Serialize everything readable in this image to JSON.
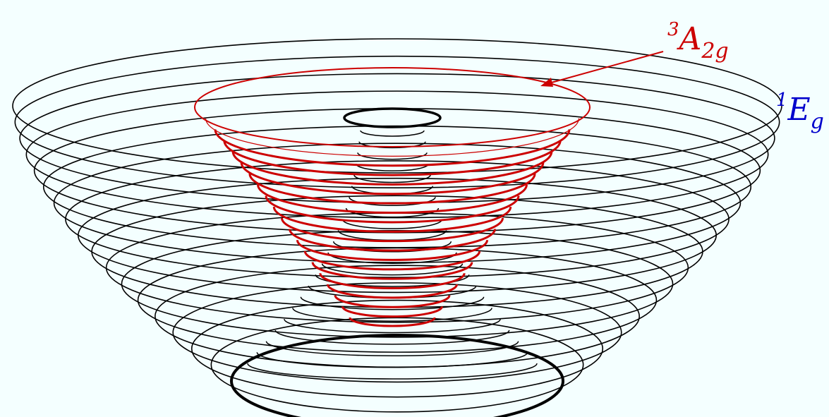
{
  "labels": {
    "red_state": {
      "superscript": "3",
      "base": "A",
      "subscript": "2g"
    },
    "blue_state": {
      "superscript": "1",
      "base": "E",
      "subscript": "g"
    }
  },
  "colors": {
    "background": "#f4ffff",
    "red_surface": "#cc0000",
    "blue_label": "#0000cc",
    "black_surface": "#000000"
  }
}
